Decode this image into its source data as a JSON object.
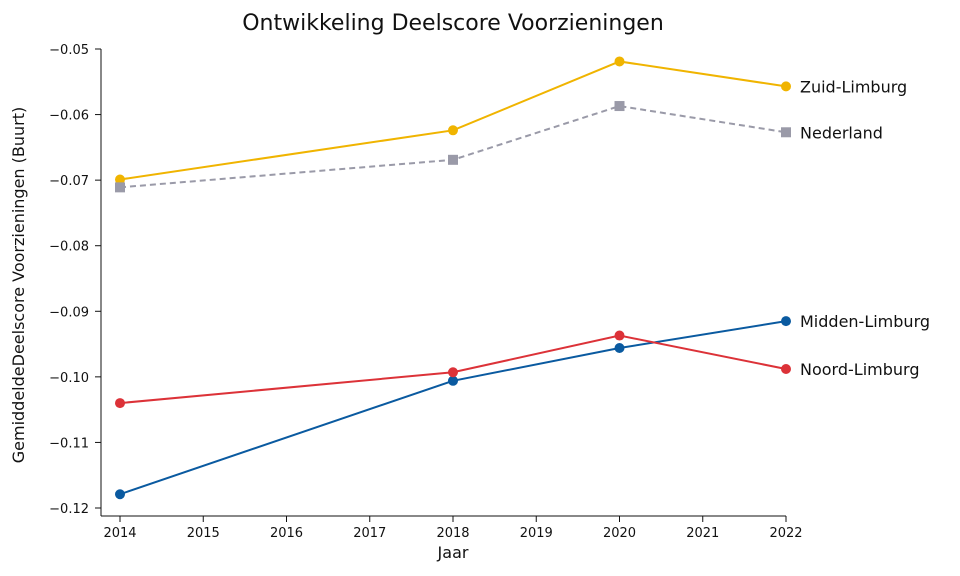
{
  "chart_data": {
    "type": "line",
    "title": "Ontwikkeling Deelscore Voorzieningen",
    "xlabel": "Jaar",
    "ylabel": "GemiddeldeDeelscore Voorzieningen (Buurt)",
    "xlim": [
      2014,
      2022
    ],
    "ylim": [
      -0.12,
      -0.05
    ],
    "x_ticks": [
      2014,
      2015,
      2016,
      2017,
      2018,
      2019,
      2020,
      2021,
      2022
    ],
    "y_ticks": [
      -0.12,
      -0.11,
      -0.1,
      -0.09,
      -0.08,
      -0.07,
      -0.06,
      -0.05
    ],
    "y_tick_labels": [
      "−0.12",
      "−0.11",
      "−0.10",
      "−0.09",
      "−0.08",
      "−0.07",
      "−0.06",
      "−0.05"
    ],
    "grid": false,
    "legend": "direct labels at line ends",
    "series": [
      {
        "name": "Zuid-Limburg",
        "color": "#f0b400",
        "marker": "circle",
        "dash": "solid",
        "x": [
          2014,
          2018,
          2020,
          2022
        ],
        "y": [
          -0.0699,
          -0.0624,
          -0.0519,
          -0.0557
        ]
      },
      {
        "name": "Nederland",
        "color": "#9a9aa8",
        "marker": "square",
        "dash": "dashed",
        "x": [
          2014,
          2018,
          2020,
          2022
        ],
        "y": [
          -0.0711,
          -0.0669,
          -0.0587,
          -0.0627
        ]
      },
      {
        "name": "Midden-Limburg",
        "color": "#0a5aa0",
        "marker": "circle",
        "dash": "solid",
        "x": [
          2014,
          2018,
          2020,
          2022
        ],
        "y": [
          -0.1179,
          -0.1006,
          -0.0956,
          -0.0915
        ]
      },
      {
        "name": "Noord-Limburg",
        "color": "#dc3238",
        "marker": "circle",
        "dash": "solid",
        "x": [
          2014,
          2018,
          2020,
          2022
        ],
        "y": [
          -0.104,
          -0.0993,
          -0.0937,
          -0.0988
        ]
      }
    ]
  }
}
